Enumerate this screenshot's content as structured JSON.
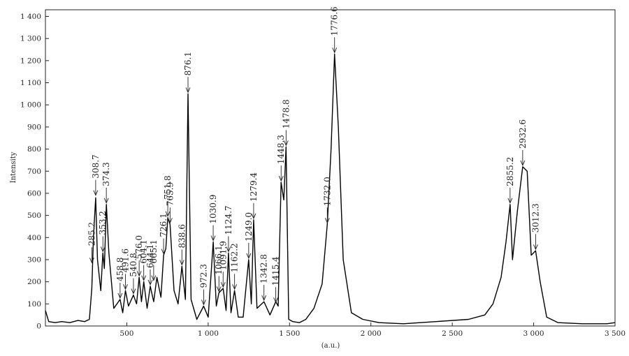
{
  "chart_data": {
    "type": "line",
    "title": "",
    "xlabel": "(a.u.)",
    "ylabel": "Intensity",
    "xlim": [
      0,
      3500
    ],
    "ylim": [
      0,
      1430
    ],
    "grid": false,
    "x_ticks": [
      500,
      1000,
      1500,
      2000,
      2500,
      3000,
      3500
    ],
    "x_tick_labels": [
      "500",
      "1 000",
      "1 500",
      "2 000",
      "2 500",
      "3 000",
      "3 500"
    ],
    "y_ticks": [
      0,
      100,
      200,
      300,
      400,
      500,
      600,
      700,
      800,
      900,
      1000,
      1100,
      1200,
      1300,
      1400
    ],
    "y_tick_labels": [
      "0",
      "100",
      "200",
      "300",
      "400",
      "500",
      "600",
      "700",
      "800",
      "900",
      "1 000",
      "1 100",
      "1 200",
      "1 300",
      "1 400"
    ],
    "series": [
      {
        "x": [
          0,
          20,
          60,
          100,
          150,
          200,
          240,
          270,
          285,
          295,
          308.7,
          320,
          340,
          353.2,
          362,
          374.3,
          390,
          420,
          458.8,
          475,
          491.6,
          510,
          540.8,
          560,
          576,
          590,
          604.1,
          625,
          644.1,
          665.1,
          685,
          710,
          726.1,
          740,
          751.8,
          765.9,
          790,
          815,
          838.6,
          860,
          876.1,
          895,
          930,
          972.3,
          1000,
          1030.9,
          1050,
          1066.1,
          1091.9,
          1110,
          1124.7,
          1140,
          1162.2,
          1185,
          1215,
          1249,
          1265,
          1279.4,
          1300,
          1342.8,
          1380,
          1415.4,
          1430,
          1448.3,
          1465,
          1478.8,
          1495,
          1520,
          1560,
          1600,
          1650,
          1700,
          1732,
          1755,
          1776.6,
          1800,
          1830,
          1880,
          1950,
          2050,
          2200,
          2400,
          2600,
          2700,
          2750,
          2800,
          2830,
          2855.2,
          2870,
          2900,
          2932.6,
          2960,
          2985,
          3012.3,
          3040,
          3080,
          3150,
          3300,
          3450,
          3500
        ],
        "y": [
          70,
          20,
          15,
          20,
          15,
          25,
          20,
          30,
          170,
          400,
          580,
          300,
          160,
          330,
          260,
          550,
          330,
          80,
          120,
          60,
          160,
          90,
          140,
          100,
          220,
          110,
          200,
          80,
          180,
          110,
          220,
          130,
          320,
          350,
          490,
          460,
          160,
          100,
          270,
          120,
          1050,
          120,
          30,
          90,
          40,
          380,
          90,
          150,
          170,
          70,
          330,
          60,
          160,
          40,
          40,
          300,
          100,
          480,
          80,
          110,
          50,
          110,
          90,
          650,
          570,
          810,
          30,
          20,
          15,
          30,
          80,
          190,
          460,
          800,
          1230,
          900,
          300,
          60,
          30,
          15,
          10,
          20,
          30,
          50,
          100,
          220,
          380,
          550,
          300,
          520,
          720,
          700,
          320,
          340,
          200,
          40,
          15,
          10,
          10,
          15
        ]
      }
    ],
    "annotations": [
      {
        "label": "285.2",
        "x": 285.2,
        "y": 280
      },
      {
        "label": "308.7",
        "x": 308.7,
        "y": 585
      },
      {
        "label": "353.2",
        "x": 353.2,
        "y": 330
      },
      {
        "label": "374.3",
        "x": 374.3,
        "y": 550
      },
      {
        "label": "458.8",
        "x": 458.8,
        "y": 120
      },
      {
        "label": "491.6",
        "x": 491.6,
        "y": 160
      },
      {
        "label": "540.8",
        "x": 540.8,
        "y": 140
      },
      {
        "label": "576.0",
        "x": 576.0,
        "y": 220
      },
      {
        "label": "604.1",
        "x": 604.1,
        "y": 200
      },
      {
        "label": "644.1",
        "x": 644.1,
        "y": 180
      },
      {
        "label": "665.1",
        "x": 665.1,
        "y": 200
      },
      {
        "label": "726.1",
        "x": 726.1,
        "y": 320
      },
      {
        "label": "751.8",
        "x": 751.8,
        "y": 490
      },
      {
        "label": "765.9",
        "x": 765.9,
        "y": 460
      },
      {
        "label": "838.6",
        "x": 838.6,
        "y": 270
      },
      {
        "label": "876.1",
        "x": 876.1,
        "y": 1050
      },
      {
        "label": "972.3",
        "x": 972.3,
        "y": 90
      },
      {
        "label": "1030.9",
        "x": 1030.9,
        "y": 380
      },
      {
        "label": "1066.1",
        "x": 1066.1,
        "y": 150
      },
      {
        "label": "1091.9",
        "x": 1091.9,
        "y": 170
      },
      {
        "label": "1124.7",
        "x": 1124.7,
        "y": 330
      },
      {
        "label": "1162.2",
        "x": 1162.2,
        "y": 160
      },
      {
        "label": "1249.0",
        "x": 1249.0,
        "y": 300
      },
      {
        "label": "1279.4",
        "x": 1279.4,
        "y": 480
      },
      {
        "label": "1342.8",
        "x": 1342.8,
        "y": 110
      },
      {
        "label": "1415.4",
        "x": 1415.4,
        "y": 100
      },
      {
        "label": "1448.3",
        "x": 1448.3,
        "y": 650
      },
      {
        "label": "1478.8",
        "x": 1478.8,
        "y": 810
      },
      {
        "label": "1732.0",
        "x": 1732.0,
        "y": 460
      },
      {
        "label": "1776.6",
        "x": 1776.6,
        "y": 1230
      },
      {
        "label": "2855.2",
        "x": 2855.2,
        "y": 550
      },
      {
        "label": "2932.6",
        "x": 2932.6,
        "y": 720
      },
      {
        "label": "3012.3",
        "x": 3012.3,
        "y": 340
      }
    ],
    "line_color": "#000000"
  }
}
